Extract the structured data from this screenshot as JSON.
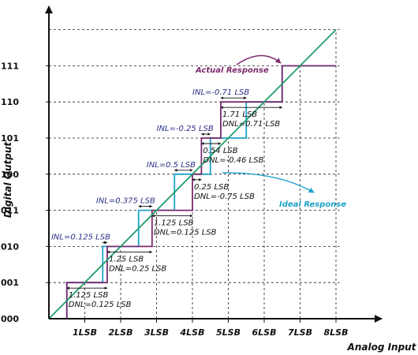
{
  "axes": {
    "x_title": "Analog Input",
    "y_title": "Digital Output",
    "x_ticks": [
      "1LSB",
      "2LSB",
      "3LSB",
      "4LSB",
      "5LSB",
      "6LSB",
      "7LSB",
      "8LSB"
    ],
    "y_ticks": [
      "000",
      "001",
      "010",
      "011",
      "100",
      "101",
      "110",
      "111"
    ]
  },
  "callouts": {
    "actual": "Actual Response",
    "ideal": "Ideal Response"
  },
  "inl_labels": [
    "INL=0.125 LSB",
    "INL=0.375 LSB",
    "INL=0.5 LSB",
    "INL=-0.25 LSB",
    "INL=-0.71 LSB"
  ],
  "measurements": [
    {
      "width": "1.125 LSB",
      "dnl": "DNL=0.125 LSB"
    },
    {
      "width": "1.25 LSB",
      "dnl": "DNL=0.25 LSB"
    },
    {
      "width": "1.125 LSB",
      "dnl": "DNL=0.125 LSB"
    },
    {
      "width": "0.25 LSB",
      "dnl": "DNL=-0.75 LSB"
    },
    {
      "width": "0.54 LSB",
      "dnl": "DNL=-0.46 LSB"
    },
    {
      "width": "1.71 LSB",
      "dnl": "DNL=0.71 LSB"
    }
  ],
  "chart_data": {
    "type": "line",
    "x_unit": "LSB",
    "ideal_line": {
      "x": [
        0,
        8
      ],
      "y": [
        0,
        8
      ]
    },
    "ideal_transitions": [
      0.5,
      1.5,
      2.5,
      3.5,
      4.5,
      5.5,
      6.5
    ],
    "actual_transitions": [
      0.5,
      1.625,
      2.875,
      4.0,
      4.25,
      4.79,
      6.5
    ],
    "actual_code_widths": [
      1.125,
      1.25,
      1.125,
      0.25,
      0.54,
      1.71
    ],
    "inl": [
      0.125,
      0.375,
      0.5,
      -0.25,
      -0.71
    ],
    "dnl": [
      0.125,
      0.25,
      0.125,
      -0.75,
      -0.46,
      0.71
    ],
    "codes": [
      "000",
      "001",
      "010",
      "011",
      "100",
      "101",
      "110",
      "111"
    ],
    "colors": {
      "actual": "#7b2a6e",
      "ideal": "#1ea3c8",
      "ideal_line": "#1f9e6a",
      "axis": "#111111",
      "inl_text": "#2a2f86"
    }
  }
}
